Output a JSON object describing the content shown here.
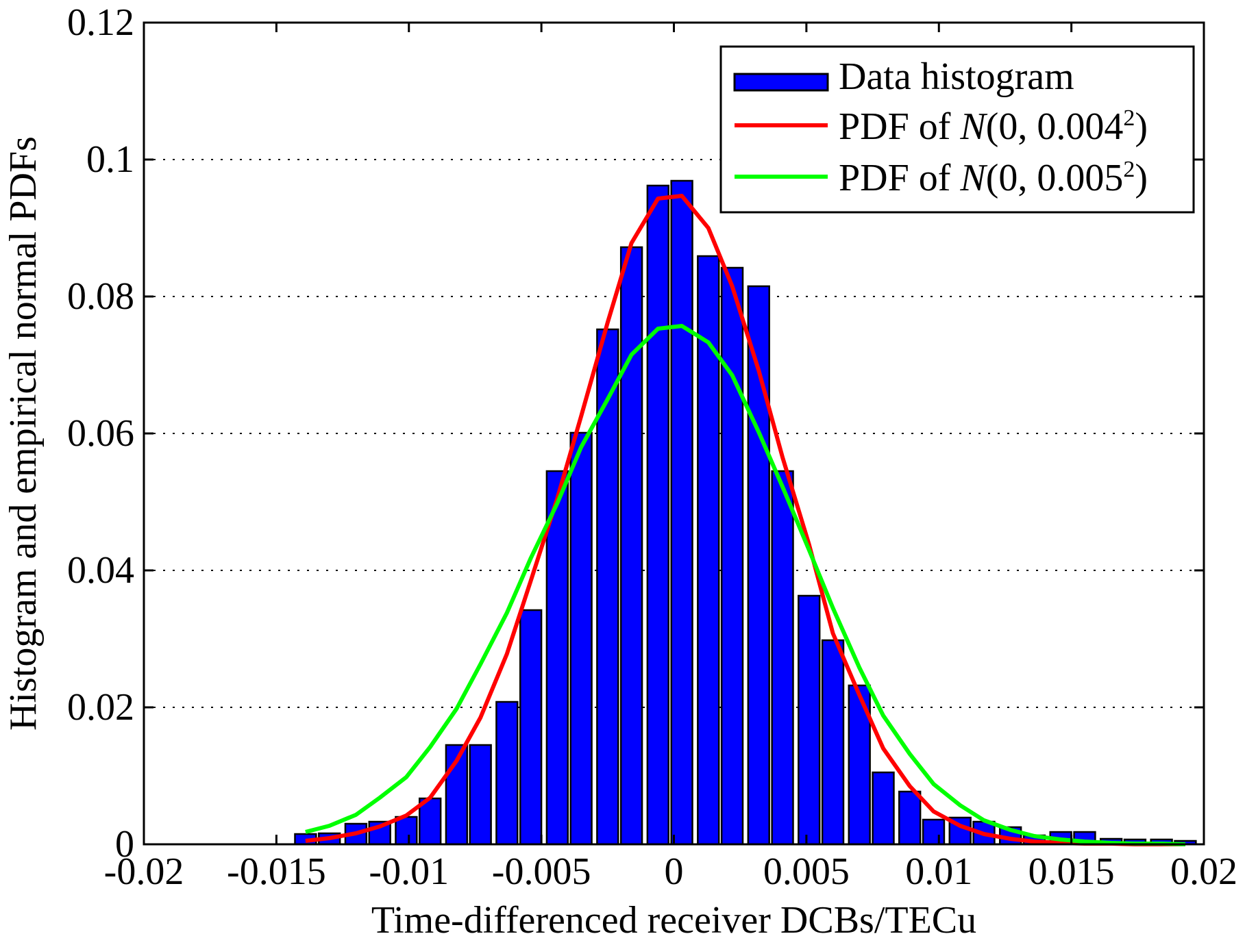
{
  "chart_data": {
    "type": "bar",
    "title": "",
    "xlabel": "Time-differenced receiver DCBs/TECu",
    "ylabel": "Histogram and empirical normal PDFs",
    "xlim": [
      -0.02,
      0.02
    ],
    "ylim": [
      0,
      0.12
    ],
    "x_ticks": [
      "-0.02",
      "-0.015",
      "-0.01",
      "-0.005",
      "0",
      "0.005",
      "0.01",
      "0.015",
      "0.02"
    ],
    "x_tick_values": [
      -0.02,
      -0.015,
      -0.01,
      -0.005,
      0,
      0.005,
      0.01,
      0.015,
      0.02
    ],
    "y_ticks": [
      "0",
      "0.02",
      "0.04",
      "0.06",
      "0.08",
      "0.1",
      "0.12"
    ],
    "y_tick_values": [
      0,
      0.02,
      0.04,
      0.06,
      0.08,
      0.1,
      0.12
    ],
    "grid": "horizontal dotted",
    "legend_position": "top-right",
    "colors": {
      "bars": "#0000ff",
      "pdf1": "#ff0000",
      "pdf2": "#00ff00",
      "axis": "#000000"
    },
    "histogram": {
      "name": "Data histogram",
      "bin_width": 0.00095,
      "bin_centers": [
        -0.0139,
        -0.013,
        -0.012,
        -0.0111,
        -0.0101,
        -0.0092,
        -0.0082,
        -0.0073,
        -0.0063,
        -0.0054,
        -0.0044,
        -0.0035,
        -0.0025,
        -0.0016,
        -0.0006,
        0.0003,
        0.0013,
        0.0022,
        0.0032,
        0.0041,
        0.0051,
        0.006,
        0.007,
        0.0079,
        0.0089,
        0.0098,
        0.0108,
        0.0117,
        0.0127,
        0.0136,
        0.0146,
        0.0155,
        0.0165,
        0.0174,
        0.0184,
        0.0193
      ],
      "values": [
        0.0015,
        0.0016,
        0.003,
        0.0033,
        0.004,
        0.0067,
        0.0145,
        0.0145,
        0.0208,
        0.0342,
        0.0545,
        0.0601,
        0.0752,
        0.0872,
        0.0962,
        0.0969,
        0.0859,
        0.0842,
        0.0815,
        0.0545,
        0.0363,
        0.0298,
        0.0232,
        0.0105,
        0.0077,
        0.0036,
        0.0039,
        0.0033,
        0.0025,
        0.0013,
        0.0018,
        0.0018,
        0.0008,
        0.0007,
        0.0007,
        0.0005
      ]
    },
    "series": [
      {
        "name": "PDF of N(0, 0.004²)",
        "legend_prefix": "PDF of ",
        "legend_italic": "N",
        "legend_suffix": "(0, 0.004",
        "legend_sup": "2",
        "legend_close": ")",
        "color": "#ff0000",
        "x": [
          -0.0139,
          -0.013,
          -0.012,
          -0.0111,
          -0.0101,
          -0.0092,
          -0.0082,
          -0.0073,
          -0.0063,
          -0.0054,
          -0.0044,
          -0.0035,
          -0.0025,
          -0.0016,
          -0.0006,
          0.0003,
          0.0013,
          0.0022,
          0.0032,
          0.0041,
          0.0051,
          0.006,
          0.007,
          0.0079,
          0.0089,
          0.0098,
          0.0108,
          0.0117,
          0.0127,
          0.0136,
          0.0146,
          0.0155,
          0.0165,
          0.0174,
          0.0184,
          0.0193
        ],
        "values": [
          0.0005,
          0.0009,
          0.0016,
          0.0026,
          0.0042,
          0.0068,
          0.0122,
          0.0185,
          0.0278,
          0.0385,
          0.0505,
          0.0625,
          0.0762,
          0.0878,
          0.0943,
          0.0947,
          0.09,
          0.0815,
          0.0692,
          0.0565,
          0.0438,
          0.0308,
          0.0218,
          0.014,
          0.0085,
          0.0048,
          0.0027,
          0.0015,
          0.0008,
          0.0004,
          0.0002,
          0.0001,
          0.0001,
          0.0,
          0.0,
          0.0
        ]
      },
      {
        "name": "PDF of N(0, 0.005²)",
        "legend_prefix": "PDF of ",
        "legend_italic": "N",
        "legend_suffix": "(0, 0.005",
        "legend_sup": "2",
        "legend_close": ")",
        "color": "#00ff00",
        "x": [
          -0.0139,
          -0.013,
          -0.012,
          -0.0111,
          -0.0101,
          -0.0092,
          -0.0082,
          -0.0073,
          -0.0063,
          -0.0054,
          -0.0044,
          -0.0035,
          -0.0025,
          -0.0016,
          -0.0006,
          0.0003,
          0.0013,
          0.0022,
          0.0032,
          0.0041,
          0.0051,
          0.006,
          0.007,
          0.0079,
          0.0089,
          0.0098,
          0.0108,
          0.0117,
          0.0127,
          0.0136,
          0.0146,
          0.0155,
          0.0165,
          0.0174,
          0.0184,
          0.0193
        ],
        "values": [
          0.0018,
          0.0027,
          0.0043,
          0.0068,
          0.0098,
          0.0142,
          0.0198,
          0.0263,
          0.0338,
          0.0418,
          0.0498,
          0.058,
          0.065,
          0.0715,
          0.0753,
          0.0757,
          0.0733,
          0.0685,
          0.0602,
          0.0522,
          0.043,
          0.0345,
          0.0258,
          0.0188,
          0.0132,
          0.0088,
          0.0057,
          0.0035,
          0.0021,
          0.0012,
          0.0007,
          0.0004,
          0.0002,
          0.0001,
          0.0001,
          0.0
        ]
      }
    ]
  }
}
